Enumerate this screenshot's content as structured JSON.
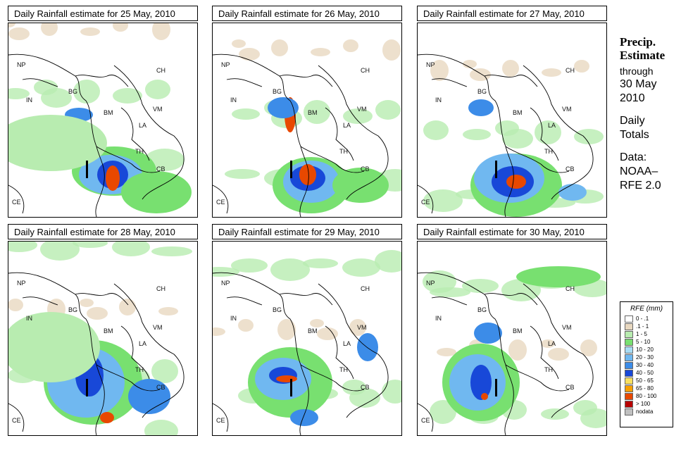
{
  "panels": [
    {
      "title": "Daily Rainfall estimate for  25 May, 2010"
    },
    {
      "title": "Daily Rainfall estimate for  26 May, 2010"
    },
    {
      "title": "Daily Rainfall estimate for  27 May, 2010"
    },
    {
      "title": "Daily Rainfall estimate for  28 May, 2010"
    },
    {
      "title": "Daily Rainfall estimate for  29 May, 2010"
    },
    {
      "title": "Daily Rainfall estimate for  30 May, 2010"
    }
  ],
  "country_labels": {
    "np": "NP",
    "in": "IN",
    "bg": "BG",
    "ch": "CH",
    "bm": "BM",
    "vm": "VM",
    "la": "LA",
    "th": "TH",
    "cb": "CB",
    "ce": "CE"
  },
  "sidebar": {
    "line1": "Precip.",
    "line2": "Estimate",
    "line3": "through",
    "line4": "30 May",
    "line5": "2010",
    "line6": "Daily",
    "line7": "Totals",
    "line8": "Data:",
    "line9": "NOAA–",
    "line10": "RFE 2.0"
  },
  "legend": {
    "title": "RFE (mm)",
    "rows": [
      {
        "label": "0 - .1",
        "color": "#ffffff"
      },
      {
        "label": ".1 - 1",
        "color": "#e8d8c0"
      },
      {
        "label": "1 - 5",
        "color": "#b8ecb0"
      },
      {
        "label": "5 - 10",
        "color": "#78e070"
      },
      {
        "label": "10 - 20",
        "color": "#a8dcf4"
      },
      {
        "label": "20 - 30",
        "color": "#70b8f0"
      },
      {
        "label": "30 - 40",
        "color": "#3c8ce8"
      },
      {
        "label": "40 - 50",
        "color": "#1848d8"
      },
      {
        "label": "50 - 65",
        "color": "#f8e060"
      },
      {
        "label": "65 - 80",
        "color": "#f8a000"
      },
      {
        "label": "80 - 100",
        "color": "#e84800"
      },
      {
        "label": "> 100",
        "color": "#b80000"
      },
      {
        "label": "nodata",
        "color": "#c0c0c0"
      }
    ]
  }
}
